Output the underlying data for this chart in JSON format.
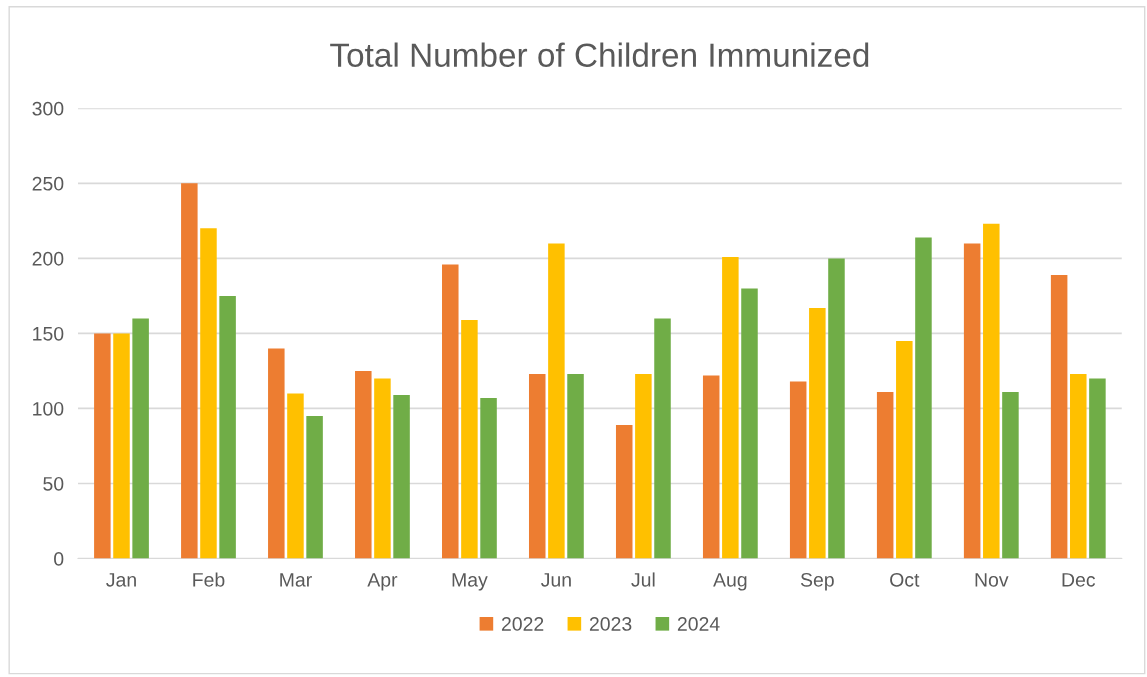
{
  "chart_data": {
    "type": "bar",
    "title": "Total Number of Children Immunized",
    "categories": [
      "Jan",
      "Feb",
      "Mar",
      "Apr",
      "May",
      "Jun",
      "Jul",
      "Aug",
      "Sep",
      "Oct",
      "Nov",
      "Dec"
    ],
    "series": [
      {
        "name": "2022",
        "color": "#ed7d31",
        "values": [
          150,
          250,
          140,
          125,
          196,
          123,
          89,
          122,
          118,
          111,
          210,
          189
        ]
      },
      {
        "name": "2023",
        "color": "#ffc000",
        "values": [
          150,
          220,
          110,
          120,
          159,
          210,
          123,
          201,
          167,
          145,
          223,
          123
        ]
      },
      {
        "name": "2024",
        "color": "#70ad47",
        "values": [
          160,
          175,
          95,
          109,
          107,
          123,
          160,
          180,
          200,
          214,
          111,
          120
        ]
      }
    ],
    "ylim": [
      0,
      300
    ],
    "yticks": [
      0,
      50,
      100,
      150,
      200,
      250,
      300
    ],
    "grid": "y",
    "legend": "bottom"
  }
}
